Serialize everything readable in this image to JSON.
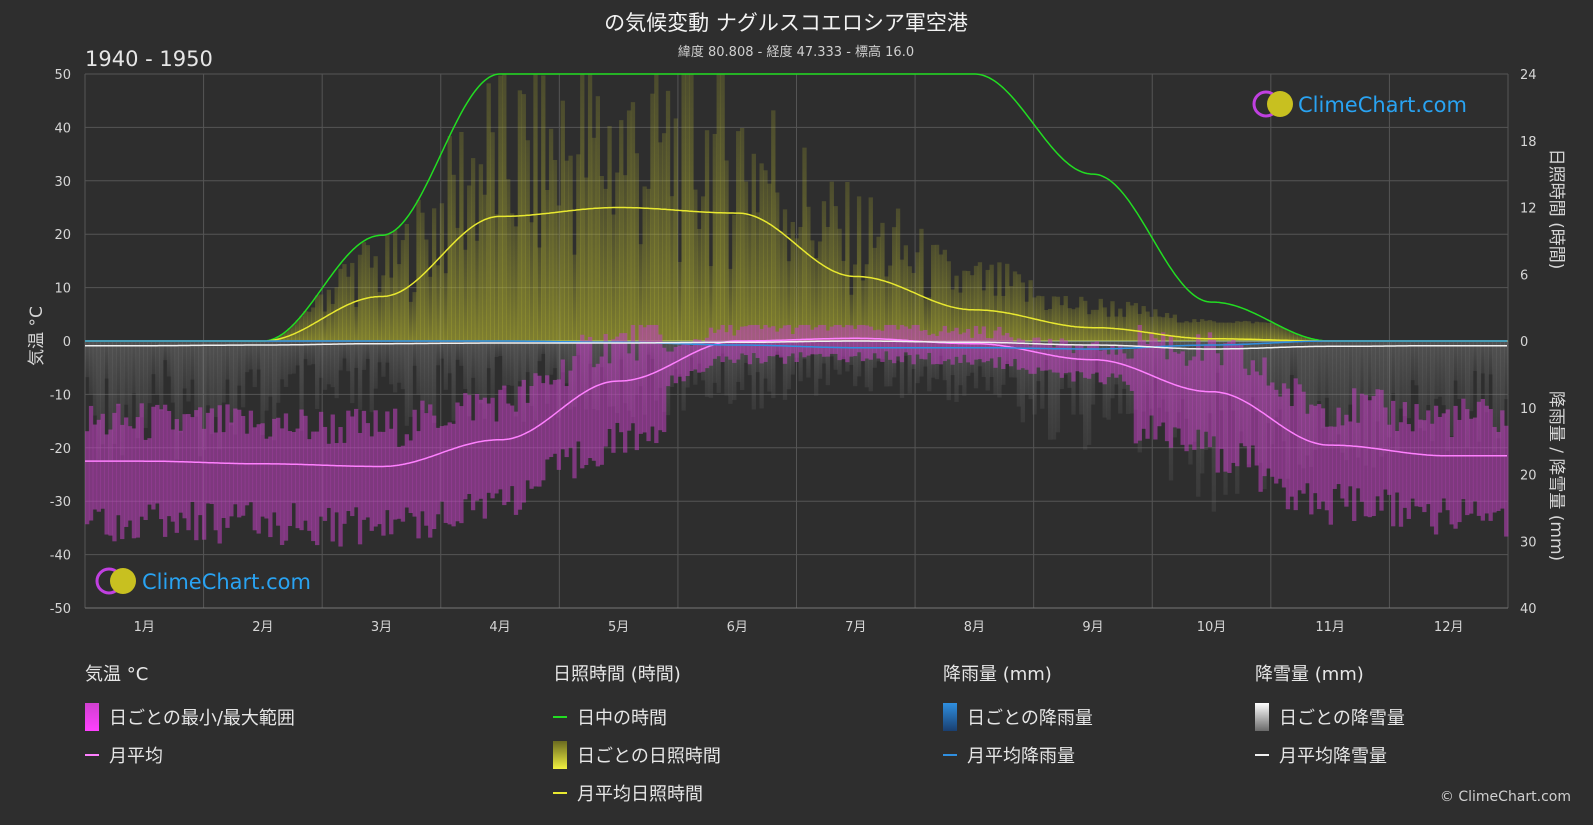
{
  "chart_data": {
    "type": "area",
    "title": "の気候変動 ナグルスコエロシア軍空港",
    "subtitle": "緯度 80.808 - 経度 47.333 - 標高 16.0",
    "period": "1940 - 1950",
    "left_axis": {
      "label": "気温 °C",
      "ylim": [
        -50,
        50
      ],
      "ticks": [
        "50",
        "40",
        "30",
        "20",
        "10",
        "0",
        "-10",
        "-20",
        "-30",
        "-40",
        "-50"
      ]
    },
    "right_axis_top": {
      "label": "日照時間 (時間)",
      "ylim": [
        0,
        24
      ],
      "ticks": [
        "24",
        "18",
        "12",
        "6",
        "0"
      ]
    },
    "right_axis_bottom": {
      "label": "降雨量 / 降雪量 (mm)",
      "ylim": [
        0,
        40
      ],
      "ticks": [
        "10",
        "20",
        "30",
        "40"
      ]
    },
    "categories": [
      "1月",
      "2月",
      "3月",
      "4月",
      "5月",
      "6月",
      "7月",
      "8月",
      "9月",
      "10月",
      "11月",
      "12月"
    ],
    "series": [
      {
        "name": "日中の時間",
        "unit": "hours",
        "values": [
          0,
          0,
          9.5,
          24,
          24,
          24,
          24,
          24,
          15,
          3.5,
          0,
          0
        ]
      },
      {
        "name": "月平均日照時間",
        "unit": "hours",
        "values": [
          0,
          0,
          4,
          11.2,
          12,
          11.5,
          5.8,
          2.8,
          1.2,
          0.2,
          0,
          0
        ]
      },
      {
        "name": "月平均",
        "unit": "°C",
        "values": [
          -22.5,
          -23,
          -23.5,
          -18.5,
          -7.5,
          0,
          0.5,
          -0.5,
          -3.5,
          -9.5,
          -19.5,
          -21.5
        ]
      },
      {
        "name": "月平均降雨量",
        "unit": "mm",
        "values": [
          0,
          0,
          0,
          0,
          0.2,
          0.6,
          1,
          1,
          1.2,
          0.6,
          0,
          0
        ]
      },
      {
        "name": "月平均降雪量",
        "unit": "mm",
        "values": [
          0.7,
          0.6,
          0.4,
          0.3,
          0.3,
          0.2,
          0,
          0.2,
          0.6,
          1.2,
          0.8,
          0.7
        ]
      }
    ],
    "legend_groups": [
      {
        "title": "気温 °C",
        "items": [
          {
            "label": "日ごとの最小/最大範囲",
            "kind": "bar",
            "color": "#e040e0"
          },
          {
            "label": "月平均",
            "kind": "line",
            "color": "#ff80ff"
          }
        ]
      },
      {
        "title": "日照時間 (時間)",
        "items": [
          {
            "label": "日中の時間",
            "kind": "line",
            "color": "#22dd22"
          },
          {
            "label": "日ごとの日照時間",
            "kind": "bar",
            "color": "#d8d830"
          },
          {
            "label": "月平均日照時間",
            "kind": "line",
            "color": "#e8e830"
          }
        ]
      },
      {
        "title": "降雨量 (mm)",
        "items": [
          {
            "label": "日ごとの降雨量",
            "kind": "bar",
            "color": "#2f8fe0"
          },
          {
            "label": "月平均降雨量",
            "kind": "line",
            "color": "#2f8fe0"
          }
        ]
      },
      {
        "title": "降雪量 (mm)",
        "items": [
          {
            "label": "日ごとの降雪量",
            "kind": "bar",
            "color": "#e0e0e0"
          },
          {
            "label": "月平均降雪量",
            "kind": "line",
            "color": "#f0f0f0"
          }
        ]
      }
    ]
  },
  "logo": {
    "text": "ClimeChart.com"
  },
  "copyright": "© ClimeChart.com"
}
